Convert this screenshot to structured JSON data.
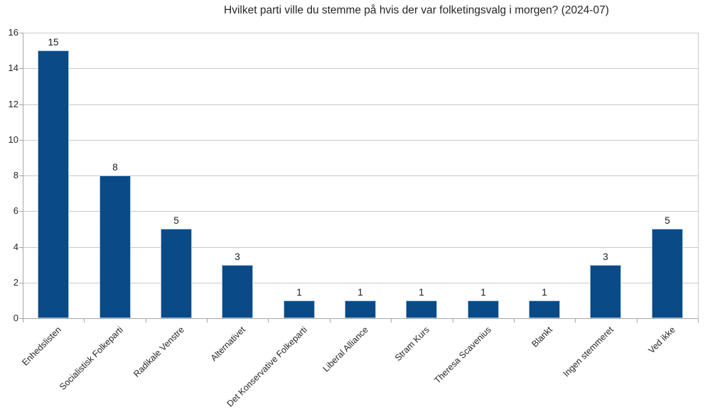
{
  "chart_data": {
    "type": "bar",
    "title": "Hvilket parti ville du stemme på hvis der var folketingsvalg i morgen? (2024-07)",
    "categories": [
      "Enhedslisten",
      "Socialistisk Folkeparti",
      "Radikale Venstre",
      "Alternativet",
      "Det Konservative Folkeparti",
      "Liberal Alliance",
      "Stram Kurs",
      "Theresa Scavenius",
      "Blankt",
      "Ingen stemmeret",
      "Ved ikke"
    ],
    "values": [
      15,
      8,
      5,
      3,
      1,
      1,
      1,
      1,
      1,
      3,
      5
    ],
    "xlabel": "",
    "ylabel": "",
    "ylim": [
      0,
      16
    ],
    "y_ticks": [
      0,
      2,
      4,
      6,
      8,
      10,
      12,
      14,
      16
    ],
    "grid": "horizontal",
    "legend": "none",
    "data_labels": true,
    "x_label_rotation": -45,
    "bar_color": "#0a4a87",
    "bar_border_color": "#a9c7e4",
    "gridline_color": "#c9c9c9",
    "axis_color": "#a6a6a6"
  }
}
